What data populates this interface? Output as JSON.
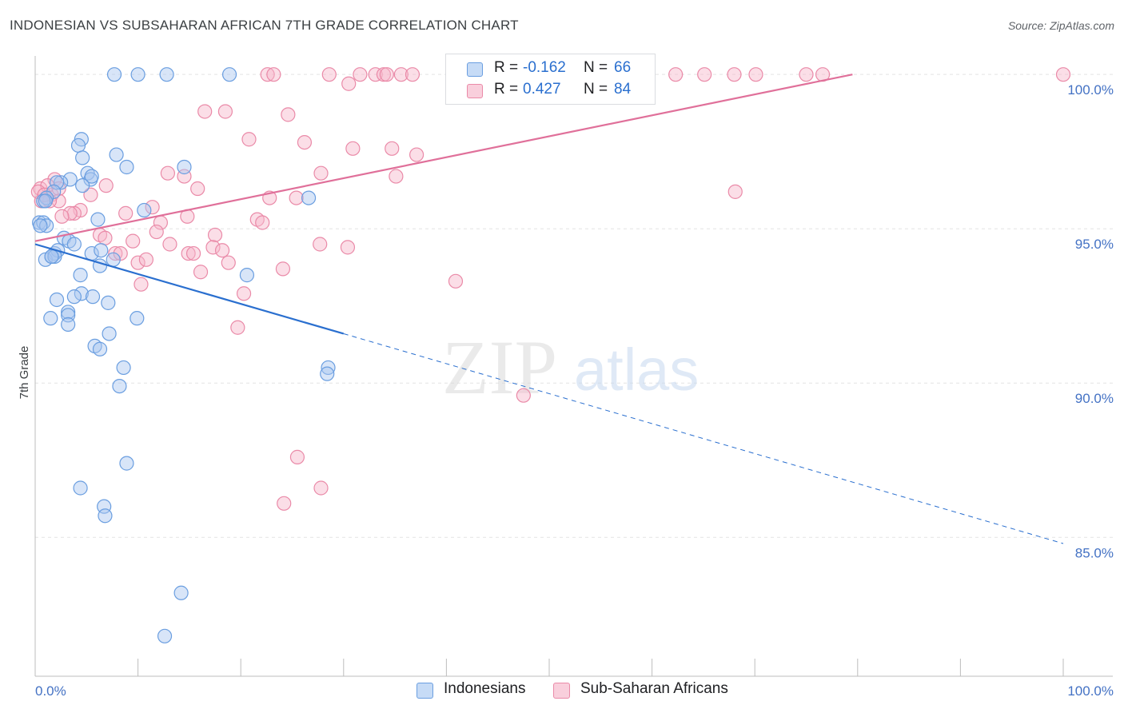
{
  "header": {
    "title": "INDONESIAN VS SUBSAHARAN AFRICAN 7TH GRADE CORRELATION CHART",
    "source": "Source: ZipAtlas.com"
  },
  "watermark": {
    "zip": "ZIP",
    "atlas": "atlas"
  },
  "legend": {
    "indonesians": {
      "r_key": "R =",
      "r_value": "-0.162",
      "n_key": "N =",
      "n_value": "66"
    },
    "subsaharan": {
      "r_key": "R =",
      "r_value": "0.427",
      "n_key": "N =",
      "n_value": "84"
    }
  },
  "bottom_legend": {
    "indonesians": "Indonesians",
    "subsaharan": "Sub-Saharan Africans"
  },
  "colors": {
    "indonesians_fill": "#a8c6f0",
    "indonesians_stroke": "#6a9ee0",
    "indonesians_line": "#2a6fcf",
    "subsaharan_fill": "#f6b6c9",
    "subsaharan_stroke": "#ea8aa8",
    "subsaharan_line": "#e0709a",
    "tick_text": "#4472c4",
    "grid": "#e3e3e3"
  },
  "chart_data": {
    "type": "scatter",
    "title": "INDONESIAN VS SUBSAHARAN AFRICAN 7TH GRADE CORRELATION CHART",
    "xlabel": "",
    "ylabel": "7th Grade",
    "xlim": [
      0,
      100
    ],
    "ylim": [
      80.5,
      100.6
    ],
    "x_tick_labels": [
      {
        "value": 0,
        "label": "0.0%"
      },
      {
        "value": 100,
        "label": "100.0%"
      }
    ],
    "x_minor_ticks": [
      0,
      10,
      20,
      30,
      40,
      50,
      60,
      70,
      80,
      90,
      100
    ],
    "y_ticks": [
      {
        "value": 100,
        "label": "100.0%"
      },
      {
        "value": 95,
        "label": "95.0%"
      },
      {
        "value": 90,
        "label": "90.0%"
      },
      {
        "value": 85,
        "label": "85.0%"
      }
    ],
    "grid": true,
    "legend_position": "top-center",
    "series": [
      {
        "name": "Indonesians",
        "color_key": "indonesians",
        "r": -0.162,
        "n": 66,
        "trend": {
          "x0": 0,
          "y0": 94.5,
          "x1": 30,
          "y1": 91.6,
          "dashed_to_x": 100,
          "dashed_to_y": 84.8
        },
        "points": [
          [
            7.7,
            100
          ],
          [
            10,
            100
          ],
          [
            12.8,
            100
          ],
          [
            18.9,
            100
          ],
          [
            4.5,
            97.9
          ],
          [
            7.9,
            97.4
          ],
          [
            4.2,
            97.7
          ],
          [
            4.6,
            97.3
          ],
          [
            8.9,
            97
          ],
          [
            14.5,
            97
          ],
          [
            5.1,
            96.8
          ],
          [
            5.4,
            96.6
          ],
          [
            3.4,
            96.6
          ],
          [
            5.5,
            96.7
          ],
          [
            2.5,
            96.5
          ],
          [
            4.6,
            96.4
          ],
          [
            2.1,
            96.5
          ],
          [
            1.8,
            96.2
          ],
          [
            1.1,
            96
          ],
          [
            0.8,
            95.9
          ],
          [
            26.6,
            96
          ],
          [
            10.6,
            95.6
          ],
          [
            1,
            95.9
          ],
          [
            0.4,
            95.2
          ],
          [
            0.8,
            95.2
          ],
          [
            1.1,
            95.1
          ],
          [
            6.1,
            95.3
          ],
          [
            2.8,
            94.7
          ],
          [
            3.3,
            94.6
          ],
          [
            3.8,
            94.5
          ],
          [
            1.9,
            94.2
          ],
          [
            2.2,
            94.3
          ],
          [
            1,
            94
          ],
          [
            1.6,
            94.1
          ],
          [
            1.9,
            94.1
          ],
          [
            5.5,
            94.2
          ],
          [
            6.4,
            94.3
          ],
          [
            6.3,
            93.8
          ],
          [
            7.6,
            94
          ],
          [
            4.4,
            93.5
          ],
          [
            20.6,
            93.5
          ],
          [
            4.5,
            92.9
          ],
          [
            3.8,
            92.8
          ],
          [
            5.6,
            92.8
          ],
          [
            2.1,
            92.7
          ],
          [
            7.1,
            92.6
          ],
          [
            1.5,
            92.1
          ],
          [
            3.2,
            92.3
          ],
          [
            3.2,
            92.2
          ],
          [
            3.2,
            91.9
          ],
          [
            9.9,
            92.1
          ],
          [
            7.2,
            91.6
          ],
          [
            5.8,
            91.2
          ],
          [
            6.3,
            91.1
          ],
          [
            8.6,
            90.5
          ],
          [
            28.5,
            90.5
          ],
          [
            28.4,
            90.3
          ],
          [
            8.2,
            89.9
          ],
          [
            8.9,
            87.4
          ],
          [
            4.4,
            86.6
          ],
          [
            6.7,
            86
          ],
          [
            6.8,
            85.7
          ],
          [
            14.2,
            83.2
          ],
          [
            12.6,
            81.8
          ],
          [
            0.5,
            95.1
          ],
          [
            1.6,
            94.1
          ]
        ]
      },
      {
        "name": "Sub-Saharan Africans",
        "color_key": "subsaharan",
        "r": 0.427,
        "n": 84,
        "trend": {
          "x0": 0,
          "y0": 94.6,
          "x1": 79.5,
          "y1": 100
        },
        "points": [
          [
            22.6,
            100
          ],
          [
            23.2,
            100
          ],
          [
            28.6,
            100
          ],
          [
            31.6,
            100
          ],
          [
            33.1,
            100
          ],
          [
            33.9,
            100
          ],
          [
            34.2,
            100
          ],
          [
            35.6,
            100
          ],
          [
            36.7,
            100
          ],
          [
            53.2,
            100
          ],
          [
            59.3,
            100
          ],
          [
            62.3,
            100
          ],
          [
            65.1,
            100
          ],
          [
            68,
            100
          ],
          [
            70.1,
            100
          ],
          [
            75,
            100
          ],
          [
            76.6,
            100
          ],
          [
            100,
            100
          ],
          [
            30.5,
            99.7
          ],
          [
            16.5,
            98.8
          ],
          [
            18.5,
            98.8
          ],
          [
            24.6,
            98.7
          ],
          [
            20.8,
            97.9
          ],
          [
            26.2,
            97.8
          ],
          [
            30.9,
            97.6
          ],
          [
            34.7,
            97.6
          ],
          [
            37.1,
            97.4
          ],
          [
            12.9,
            96.8
          ],
          [
            14.5,
            96.7
          ],
          [
            27.8,
            96.8
          ],
          [
            35.1,
            96.7
          ],
          [
            1.9,
            96.6
          ],
          [
            6.9,
            96.4
          ],
          [
            15.8,
            96.3
          ],
          [
            1.6,
            96.1
          ],
          [
            5.4,
            96.1
          ],
          [
            22.8,
            96
          ],
          [
            25.4,
            96
          ],
          [
            68.1,
            96.2
          ],
          [
            0.5,
            96.3
          ],
          [
            1.2,
            96.4
          ],
          [
            2.3,
            96.3
          ],
          [
            0.6,
            95.9
          ],
          [
            2.3,
            95.9
          ],
          [
            4.4,
            95.6
          ],
          [
            3.8,
            95.5
          ],
          [
            8.8,
            95.5
          ],
          [
            11.4,
            95.7
          ],
          [
            14.8,
            95.4
          ],
          [
            3.4,
            95.5
          ],
          [
            2.6,
            95.4
          ],
          [
            21.6,
            95.3
          ],
          [
            22.1,
            95.2
          ],
          [
            12.2,
            95.2
          ],
          [
            6.3,
            94.8
          ],
          [
            6.8,
            94.7
          ],
          [
            17.5,
            94.8
          ],
          [
            11.8,
            94.9
          ],
          [
            9.5,
            94.6
          ],
          [
            13.1,
            94.5
          ],
          [
            17.3,
            94.4
          ],
          [
            18.2,
            94.3
          ],
          [
            27.7,
            94.5
          ],
          [
            30.4,
            94.4
          ],
          [
            7.8,
            94.2
          ],
          [
            8.3,
            94.2
          ],
          [
            14.9,
            94.2
          ],
          [
            15.4,
            94.2
          ],
          [
            10,
            93.9
          ],
          [
            10.8,
            94
          ],
          [
            18.8,
            93.9
          ],
          [
            16.1,
            93.6
          ],
          [
            24.1,
            93.7
          ],
          [
            40.9,
            93.3
          ],
          [
            10.3,
            93.2
          ],
          [
            20.3,
            92.9
          ],
          [
            19.7,
            91.8
          ],
          [
            47.5,
            89.6
          ],
          [
            25.5,
            87.6
          ],
          [
            27.8,
            86.6
          ],
          [
            24.2,
            86.1
          ],
          [
            0.3,
            96.2
          ],
          [
            1.4,
            95.9
          ],
          [
            0.9,
            96.1
          ]
        ]
      }
    ]
  }
}
